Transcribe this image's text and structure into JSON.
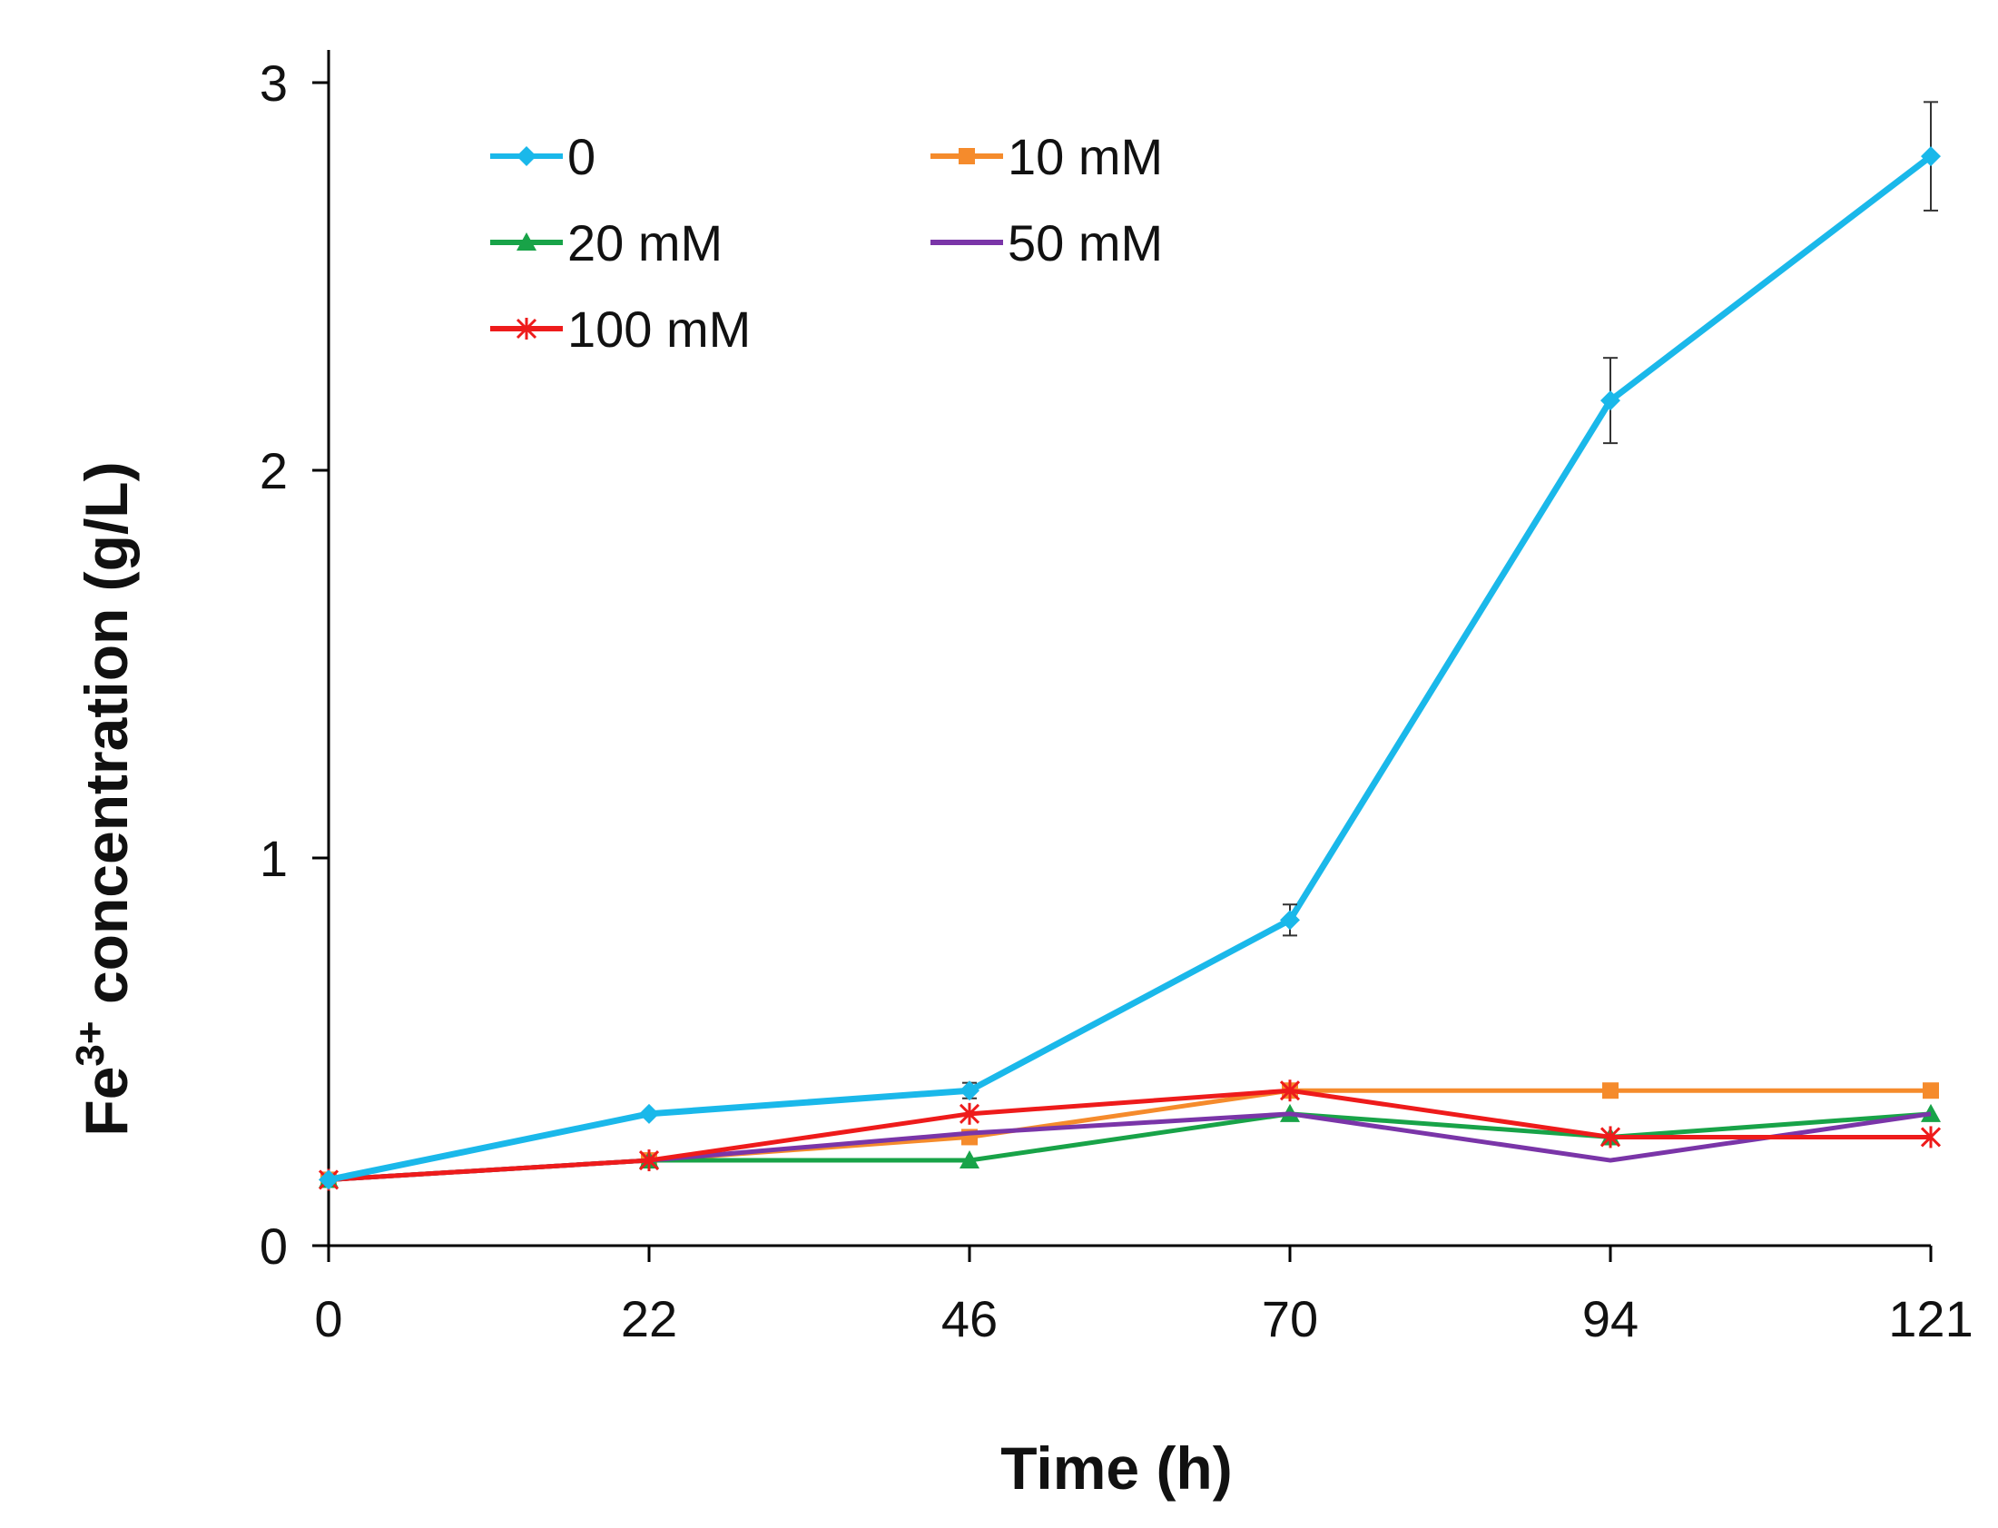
{
  "chart_data": {
    "type": "line",
    "title": "",
    "xlabel": "Time (h)",
    "ylabel_main": "Fe",
    "ylabel_sup": "3+",
    "ylabel_rest": " concentration (g/L)",
    "x": [
      0,
      22,
      46,
      70,
      94,
      121
    ],
    "x_tick_labels": [
      "0",
      "22",
      "46",
      "70",
      "94",
      "121"
    ],
    "y_ticks": [
      0,
      1,
      2,
      3
    ],
    "ylim": [
      0,
      3
    ],
    "grid": false,
    "legend_position": "top-left",
    "series": [
      {
        "name": "0",
        "color": "#1ab8ea",
        "marker": "diamond",
        "values": [
          0.17,
          0.34,
          0.4,
          0.84,
          2.18,
          2.81
        ],
        "errors": [
          0.0,
          0.0,
          0.02,
          0.04,
          0.11,
          0.14
        ]
      },
      {
        "name": "10 mM",
        "color": "#f58b2c",
        "marker": "square",
        "values": [
          0.17,
          0.22,
          0.28,
          0.4,
          0.4,
          0.4
        ],
        "errors": [
          0,
          0,
          0,
          0,
          0,
          0
        ]
      },
      {
        "name": "20 mM",
        "color": "#18a348",
        "marker": "triangle",
        "values": [
          0.17,
          0.22,
          0.22,
          0.34,
          0.28,
          0.34
        ],
        "errors": [
          0,
          0,
          0,
          0,
          0,
          0
        ]
      },
      {
        "name": "50 mM",
        "color": "#7a35a8",
        "marker": "none",
        "values": [
          0.17,
          0.22,
          0.29,
          0.34,
          0.22,
          0.34
        ],
        "errors": [
          0,
          0,
          0,
          0,
          0,
          0
        ]
      },
      {
        "name": "100 mM",
        "color": "#ee1b1b",
        "marker": "star",
        "values": [
          0.17,
          0.22,
          0.34,
          0.4,
          0.28,
          0.28
        ],
        "errors": [
          0,
          0,
          0,
          0,
          0,
          0
        ]
      }
    ]
  }
}
